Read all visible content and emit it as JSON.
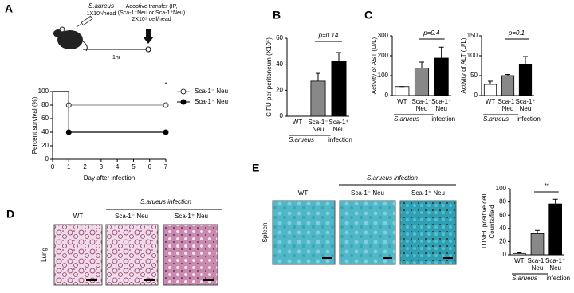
{
  "panel_labels": [
    "A",
    "B",
    "C",
    "D",
    "E"
  ],
  "diagram": {
    "strain": "S.aureus",
    "dose": "1X10⁶/head",
    "time": "1hr",
    "transfer": "Adoptive transfer (IP,",
    "transfer_detail": "(Sca-1⁻Neu or Sca-1⁺Neu)",
    "cell_dose": "2X10⁵ cell/head"
  },
  "histology": {
    "lung": {
      "row_label": "Lung",
      "group_title": "S.arueus infection",
      "columns": [
        "WT",
        "Sca-1⁻ Neu",
        "Sca-1⁺ Neu"
      ]
    },
    "spleen": {
      "row_label": "Spleen",
      "group_title": "S.arueus infection",
      "columns": [
        "WT",
        "Sca-1⁻ Neu",
        "Sca-1⁺ Neu"
      ]
    }
  },
  "chart_data": [
    {
      "type": "line",
      "x_label": "Day after infection",
      "y_label": "Percent survival (%)",
      "step": true,
      "x": [
        0,
        1,
        7
      ],
      "xlim": [
        0,
        7
      ],
      "xticks": [
        0,
        1,
        2,
        3,
        4,
        5,
        6,
        7
      ],
      "ylim": [
        0,
        100
      ],
      "yticks": [
        0,
        20,
        40,
        60,
        80,
        100
      ],
      "annotation": "*",
      "legend": "right",
      "series": [
        {
          "name": "Sca-1⁻ Neu",
          "color": "#999999",
          "marker": "open",
          "values": [
            100,
            80,
            80
          ]
        },
        {
          "name": "Sca-1⁺ Neu",
          "color": "#000000",
          "marker": "filled",
          "values": [
            100,
            40,
            40
          ]
        }
      ]
    },
    {
      "type": "bar",
      "y_label": "C FU per peritoneum (X10⁵)",
      "categories": [
        "WT",
        "Sca-1⁻ Neu",
        "Sca-1⁺ Neu"
      ],
      "values": [
        0,
        27,
        42
      ],
      "errors": [
        0,
        6,
        7
      ],
      "colors": [
        "#ffffff",
        "#888888",
        "#000000"
      ],
      "ylim": [
        0,
        60
      ],
      "yticks": [
        0,
        20,
        40,
        60
      ],
      "annotation": "p=0.14",
      "group_label": "S.arueus",
      "group_suffix": "infection"
    },
    {
      "type": "bar",
      "y_label": "Activity of AST (U/L)",
      "categories": [
        "WT",
        "Sca-1⁻ Neu",
        "Sca-1⁺ Neu"
      ],
      "values": [
        45,
        138,
        188
      ],
      "errors": [
        0,
        30,
        55
      ],
      "colors": [
        "#ffffff",
        "#888888",
        "#000000"
      ],
      "ylim": [
        0,
        300
      ],
      "yticks": [
        0,
        100,
        200,
        300
      ],
      "annotation": "p=0.4",
      "group_label": "S.arueus",
      "group_suffix": "infection"
    },
    {
      "type": "bar",
      "y_label": "Activity of ALT (U/L)",
      "categories": [
        "WT",
        "Sca-1⁻ Neu",
        "Sca-1⁺ Neu"
      ],
      "values": [
        28,
        50,
        78
      ],
      "errors": [
        8,
        3,
        20
      ],
      "colors": [
        "#ffffff",
        "#888888",
        "#000000"
      ],
      "ylim": [
        0,
        150
      ],
      "yticks": [
        0,
        50,
        100,
        150
      ],
      "annotation": "p=0.1",
      "group_label": "S.arueus",
      "group_suffix": "infection"
    },
    {
      "type": "bar",
      "y_label": [
        "TUNEL positive cell",
        "Counts/field"
      ],
      "categories": [
        "WT",
        "Sca-1⁻ Neu",
        "Sca-1⁺ Neu"
      ],
      "values": [
        2,
        32,
        77
      ],
      "errors": [
        1,
        5,
        7
      ],
      "colors": [
        "#ffffff",
        "#888888",
        "#000000"
      ],
      "ylim": [
        0,
        100
      ],
      "yticks": [
        0,
        20,
        40,
        60,
        80,
        100
      ],
      "annotation": "**",
      "group_label": "S.arueus",
      "group_suffix": "infection"
    }
  ]
}
